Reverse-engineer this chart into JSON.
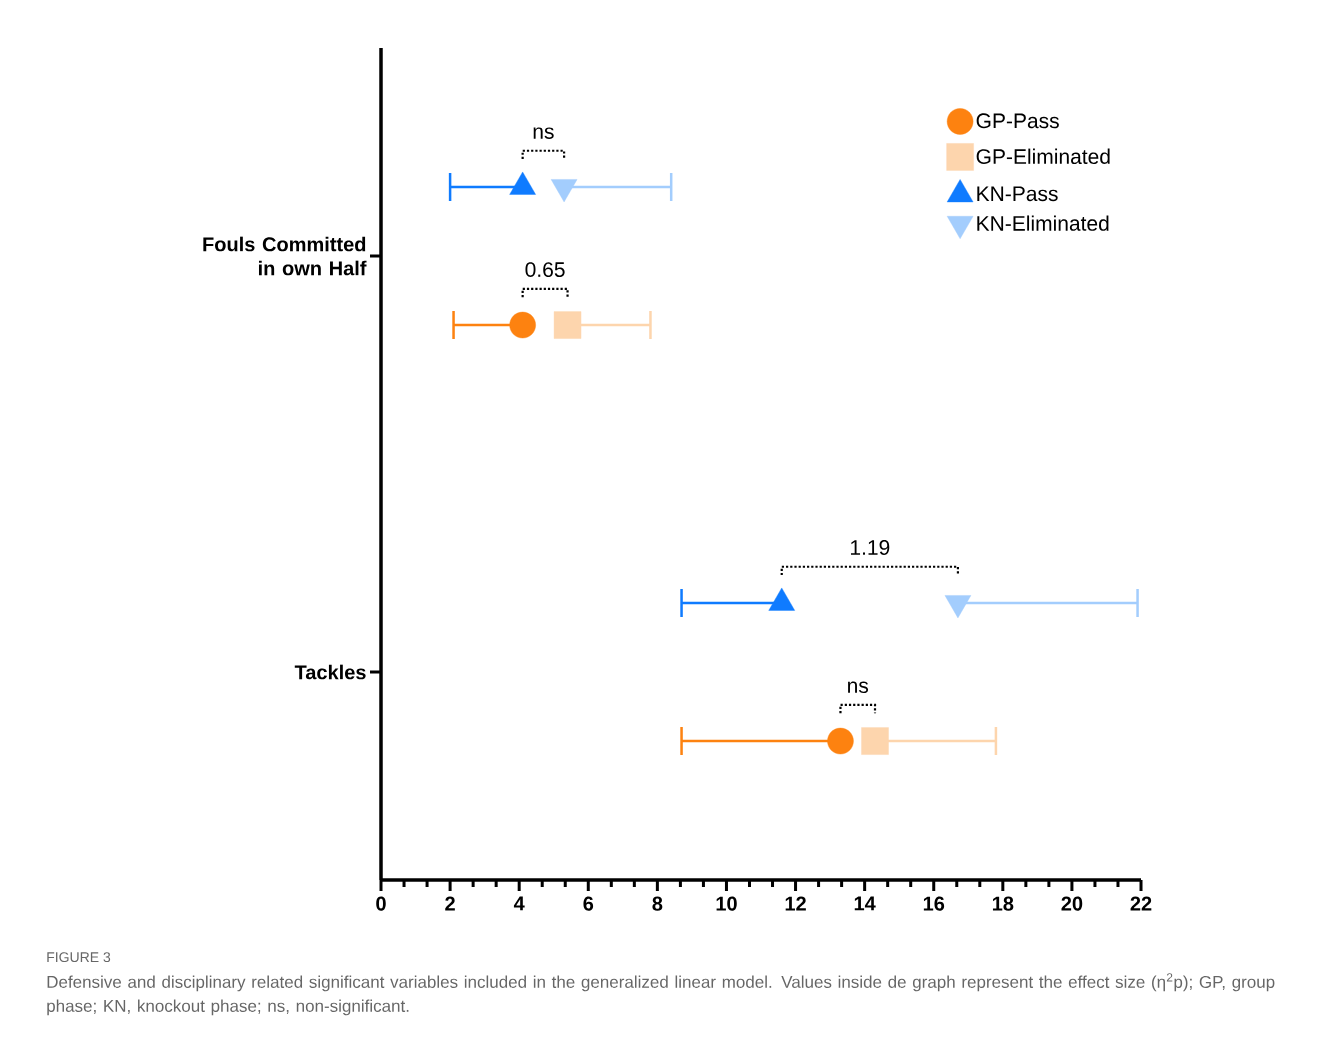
{
  "chart_data": {
    "type": "scatter",
    "orientation": "horizontal",
    "categories": [
      "Fouls Committed in own Half",
      "Tackles"
    ],
    "series": [
      {
        "name": "GP-Pass",
        "color": "#fd8210",
        "marker": "circle",
        "values": [
          4.1,
          13.3
        ],
        "errors": [
          [
            2.1,
            4.1
          ],
          [
            8.7,
            13.3
          ]
        ]
      },
      {
        "name": "GP-Eliminated",
        "color": "#fdd5ad",
        "marker": "square",
        "values": [
          5.4,
          14.3
        ],
        "errors": [
          [
            5.4,
            7.8
          ],
          [
            14.3,
            17.8
          ]
        ]
      },
      {
        "name": "KN-Pass",
        "color": "#0f7bff",
        "marker": "triangle",
        "values": [
          4.1,
          11.6
        ],
        "errors": [
          [
            2.0,
            4.1
          ],
          [
            8.7,
            11.6
          ]
        ]
      },
      {
        "name": "KN-Eliminated",
        "color": "#a3cdfd",
        "marker": "triangle down",
        "values": [
          5.3,
          16.7
        ],
        "errors": [
          [
            5.3,
            8.4
          ],
          [
            16.7,
            21.9
          ]
        ]
      }
    ],
    "xlim": [
      0,
      22
    ],
    "xticks": [
      0,
      2,
      4,
      6,
      8,
      10,
      12,
      14,
      16,
      18,
      20,
      22
    ],
    "legend": "top right",
    "annotations": [
      "ns",
      "0.65",
      "1.19",
      "ns",
      "FIGURE 3",
      "Defensive and disciplinary related significant variables included in the generalized linear model. Values inside de graph represent the effect size (η$^{2}$p); GP, group phase; KN, knockout phase; ns, non-significant."
    ]
  }
}
